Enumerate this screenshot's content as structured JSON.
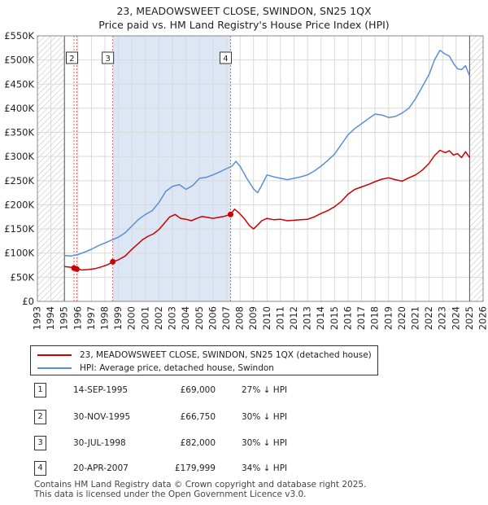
{
  "title_line1": "23, MEADOWSWEET CLOSE, SWINDON, SN25 1QX",
  "title_line2": "Price paid vs. HM Land Registry's House Price Index (HPI)",
  "legend": {
    "property_label": "23, MEADOWSWEET CLOSE, SWINDON, SN25 1QX (detached house)",
    "hpi_label": "HPI: Average price, detached house, Swindon"
  },
  "colors": {
    "property": "#cc0000",
    "hpi": "#5b8fd4",
    "shade": "#dde6f5",
    "marker": "#cc0000"
  },
  "sales": [
    {
      "num": "1",
      "date": "14-SEP-1995",
      "price": "£69,000",
      "hpi": "27% ↓ HPI"
    },
    {
      "num": "2",
      "date": "30-NOV-1995",
      "price": "£66,750",
      "hpi": "30% ↓ HPI"
    },
    {
      "num": "3",
      "date": "30-JUL-1998",
      "price": "£82,000",
      "hpi": "30% ↓ HPI"
    },
    {
      "num": "4",
      "date": "20-APR-2007",
      "price": "£179,999",
      "hpi": "34% ↓ HPI"
    }
  ],
  "footer_line1": "Contains HM Land Registry data © Crown copyright and database right 2025.",
  "footer_line2": "This data is licensed under the Open Government Licence v3.0.",
  "chart_data": {
    "type": "line",
    "title": "23, MEADOWSWEET CLOSE, SWINDON, SN25 1QX — Price paid vs. HM Land Registry's House Price Index (HPI)",
    "xlabel": "",
    "ylabel": "",
    "xlim": [
      1993,
      2026
    ],
    "ylim": [
      0,
      550000
    ],
    "x_ticks": [
      1993,
      1994,
      1995,
      1996,
      1997,
      1998,
      1999,
      2000,
      2001,
      2002,
      2003,
      2004,
      2005,
      2006,
      2007,
      2008,
      2009,
      2010,
      2011,
      2012,
      2013,
      2014,
      2015,
      2016,
      2017,
      2018,
      2019,
      2020,
      2021,
      2022,
      2023,
      2024,
      2025,
      2026
    ],
    "y_ticks": [
      0,
      50000,
      100000,
      150000,
      200000,
      250000,
      300000,
      350000,
      400000,
      450000,
      500000,
      550000
    ],
    "y_tick_labels": [
      "£0",
      "£50K",
      "£100K",
      "£150K",
      "£200K",
      "£250K",
      "£300K",
      "£350K",
      "£400K",
      "£450K",
      "£500K",
      "£550K"
    ],
    "grid": true,
    "shaded_range": [
      1998.58,
      2007.3
    ],
    "hatched_ranges": [
      [
        1993,
        1995.0
      ],
      [
        2025.0,
        2026
      ]
    ],
    "series": [
      {
        "name": "23, MEADOWSWEET CLOSE, SWINDON, SN25 1QX (detached house)",
        "x": [
          1995.0,
          1995.7,
          1995.9,
          1996.3,
          1996.8,
          1997.3,
          1997.8,
          1998.2,
          1998.58,
          1999.0,
          1999.5,
          2000.0,
          2000.4,
          2000.8,
          2001.2,
          2001.6,
          2002.0,
          2002.4,
          2002.8,
          2003.2,
          2003.6,
          2004.0,
          2004.4,
          2004.8,
          2005.2,
          2005.6,
          2006.0,
          2006.4,
          2006.8,
          2007.3,
          2007.6,
          2007.9,
          2008.3,
          2008.7,
          2009.0,
          2009.3,
          2009.6,
          2010.0,
          2010.5,
          2011.0,
          2011.5,
          2012.0,
          2012.5,
          2013.0,
          2013.5,
          2014.0,
          2014.5,
          2015.0,
          2015.5,
          2016.0,
          2016.5,
          2017.0,
          2017.5,
          2018.0,
          2018.5,
          2019.0,
          2019.5,
          2020.0,
          2020.5,
          2021.0,
          2021.5,
          2022.0,
          2022.4,
          2022.8,
          2023.2,
          2023.5,
          2023.8,
          2024.1,
          2024.4,
          2024.7,
          2025.0
        ],
        "y": [
          72000,
          70000,
          68000,
          65000,
          66000,
          68000,
          72000,
          76000,
          82000,
          86000,
          94000,
          108000,
          118000,
          128000,
          135000,
          140000,
          149000,
          162000,
          175000,
          180000,
          172000,
          170000,
          167000,
          172000,
          176000,
          174000,
          172000,
          174000,
          176000,
          180000,
          191000,
          184000,
          172000,
          157000,
          150000,
          158000,
          167000,
          172000,
          169000,
          170000,
          167000,
          168000,
          169000,
          170000,
          175000,
          182000,
          188000,
          196000,
          207000,
          222000,
          232000,
          237000,
          242000,
          248000,
          253000,
          256000,
          252000,
          249000,
          256000,
          262000,
          272000,
          286000,
          302000,
          313000,
          308000,
          312000,
          303000,
          306000,
          298000,
          310000,
          298000
        ]
      },
      {
        "name": "HPI: Average price, detached house, Swindon",
        "x": [
          1995.0,
          1995.5,
          1996.0,
          1996.5,
          1997.0,
          1997.5,
          1998.0,
          1998.5,
          1999.0,
          1999.5,
          2000.0,
          2000.5,
          2001.0,
          2001.5,
          2002.0,
          2002.5,
          2003.0,
          2003.5,
          2004.0,
          2004.5,
          2005.0,
          2005.5,
          2006.0,
          2006.5,
          2007.0,
          2007.4,
          2007.7,
          2008.0,
          2008.5,
          2009.0,
          2009.3,
          2009.6,
          2010.0,
          2010.5,
          2011.0,
          2011.5,
          2012.0,
          2012.5,
          2013.0,
          2013.5,
          2014.0,
          2014.5,
          2015.0,
          2015.5,
          2016.0,
          2016.5,
          2017.0,
          2017.5,
          2018.0,
          2018.5,
          2019.0,
          2019.5,
          2020.0,
          2020.5,
          2021.0,
          2021.5,
          2022.0,
          2022.4,
          2022.8,
          2023.2,
          2023.5,
          2023.8,
          2024.1,
          2024.4,
          2024.7,
          2025.0
        ],
        "y": [
          95000,
          94000,
          97000,
          102000,
          108000,
          115000,
          121000,
          127000,
          133000,
          142000,
          156000,
          170000,
          180000,
          188000,
          205000,
          228000,
          238000,
          242000,
          232000,
          240000,
          255000,
          257000,
          262000,
          268000,
          275000,
          280000,
          290000,
          280000,
          255000,
          233000,
          225000,
          240000,
          262000,
          258000,
          255000,
          252000,
          255000,
          258000,
          262000,
          270000,
          280000,
          292000,
          305000,
          325000,
          345000,
          358000,
          368000,
          378000,
          388000,
          386000,
          381000,
          383000,
          390000,
          400000,
          420000,
          445000,
          470000,
          500000,
          520000,
          512000,
          508000,
          493000,
          482000,
          480000,
          488000,
          467000
        ]
      }
    ],
    "annotations": [
      {
        "label": "1",
        "x": 1995.71,
        "y": 69000
      },
      {
        "label": "2",
        "x": 1995.92,
        "y": 66750
      },
      {
        "label": "3",
        "x": 1998.58,
        "y": 82000
      },
      {
        "label": "4",
        "x": 2007.3,
        "y": 179999
      }
    ],
    "box_labels": [
      "2",
      "3",
      "4"
    ]
  }
}
